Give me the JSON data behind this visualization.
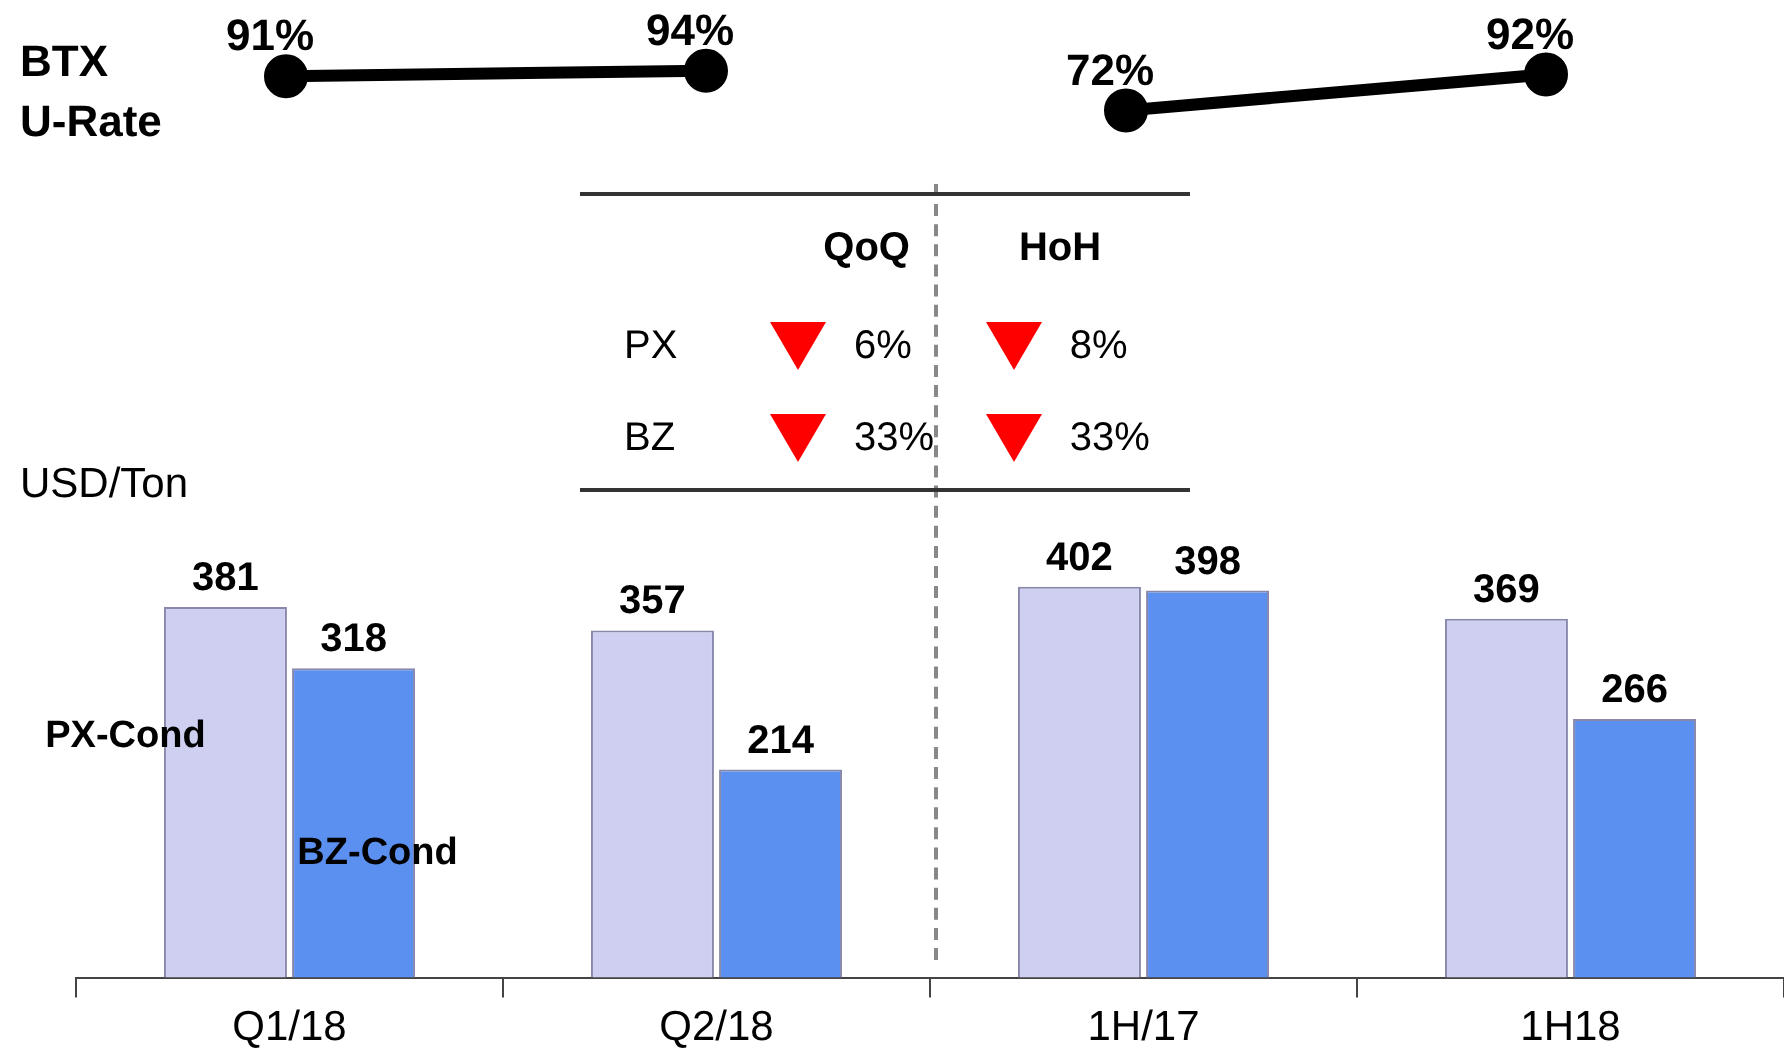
{
  "chart_data": [
    {
      "type": "line",
      "categories": [
        null,
        null,
        null,
        null
      ],
      "marker": "circle",
      "line_style": "solid",
      "tick_labels": false,
      "series": [
        {
          "name": "BTX U-Rate",
          "color": "#000000",
          "values": [
            91,
            94,
            null,
            null
          ],
          "value_labels": [
            "91%",
            "94%",
            null,
            null
          ]
        },
        {
          "color": "#000000",
          "values": [
            null,
            null,
            72,
            92
          ],
          "value_labels": [
            null,
            null,
            "72%",
            "92%"
          ]
        }
      ]
    },
    {
      "type": "bar",
      "ylabel": "USD/Ton",
      "categories": [
        "Q1/18",
        "Q2/18",
        "1H/17",
        "1H18"
      ],
      "data_labels": true,
      "tick_labels": "x",
      "annotations": [
        "QoQ",
        "HoH",
        "PX",
        "6%",
        "8%",
        "BZ",
        "33%",
        "33%"
      ],
      "series": [
        {
          "name": "PX-Cond",
          "color": "#cfcff2",
          "values": [
            381,
            357,
            402,
            369
          ]
        },
        {
          "name": "BZ-Cond",
          "color": "#5b8ff0",
          "values": [
            318,
            214,
            398,
            266
          ]
        }
      ]
    }
  ]
}
